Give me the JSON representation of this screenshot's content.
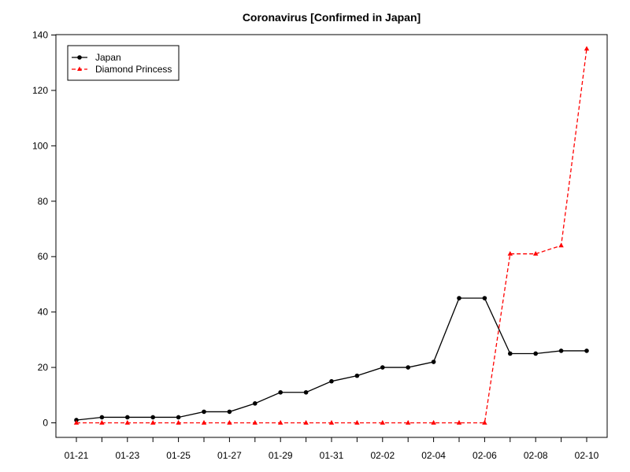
{
  "chart_data": {
    "type": "line",
    "title": "Coronavirus [Confirmed in Japan]",
    "xlabel": "",
    "ylabel": "",
    "x": [
      "01-21",
      "01-22",
      "01-23",
      "01-24",
      "01-25",
      "01-26",
      "01-27",
      "01-28",
      "01-29",
      "01-30",
      "01-31",
      "02-01",
      "02-02",
      "02-03",
      "02-04",
      "02-05",
      "02-06",
      "02-07",
      "02-08",
      "02-09",
      "02-10"
    ],
    "x_tick_labels": [
      "01-21",
      "01-23",
      "01-25",
      "01-27",
      "01-29",
      "01-31",
      "02-02",
      "02-04",
      "02-06",
      "02-08",
      "02-10"
    ],
    "ylim": [
      0,
      140
    ],
    "y_ticks": [
      0,
      20,
      40,
      60,
      80,
      100,
      120,
      140
    ],
    "grid": false,
    "legend_position": "top-left",
    "series": [
      {
        "name": "Japan",
        "color": "#000000",
        "line_style": "solid",
        "marker": "circle",
        "values": [
          1,
          2,
          2,
          2,
          2,
          4,
          4,
          7,
          11,
          11,
          15,
          17,
          20,
          20,
          22,
          45,
          45,
          25,
          25,
          26,
          26
        ]
      },
      {
        "name": "Diamond Princess",
        "color": "#ff0000",
        "line_style": "dashed",
        "marker": "triangle",
        "values": [
          0,
          0,
          0,
          0,
          0,
          0,
          0,
          0,
          0,
          0,
          0,
          0,
          0,
          0,
          0,
          0,
          0,
          61,
          61,
          64,
          135
        ]
      }
    ]
  }
}
